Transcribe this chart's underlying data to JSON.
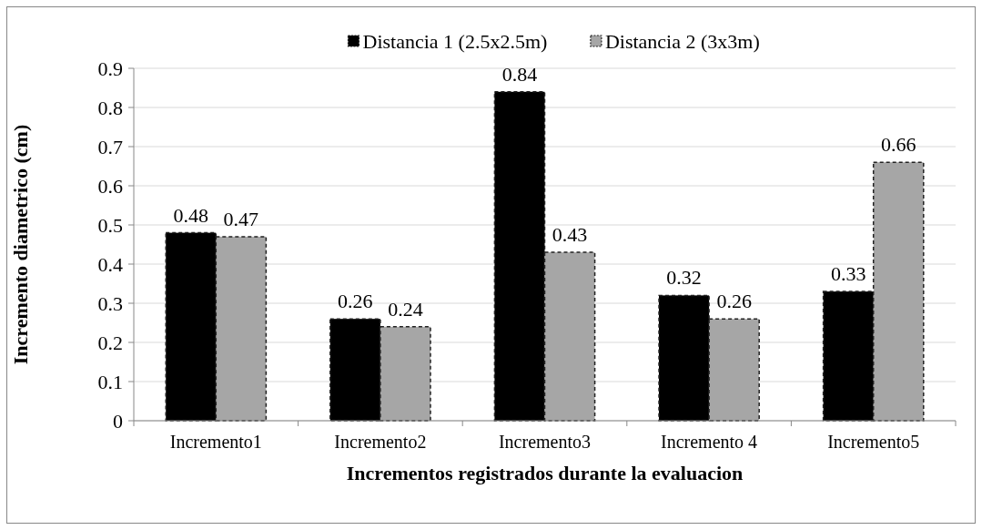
{
  "chart_data": {
    "type": "bar",
    "xlabel": "Incrementos registrados durante la evaluacion",
    "ylabel": "Incremento diametrico (cm)",
    "categories": [
      "Incremento1",
      "Incremento2",
      "Incremento3",
      "Incremento 4",
      "Incremento5"
    ],
    "series": [
      {
        "name": "Distancia 1 (2.5x2.5m)",
        "color": "#000000",
        "values": [
          0.48,
          0.26,
          0.84,
          0.32,
          0.33
        ]
      },
      {
        "name": "Distancia 2 (3x3m)",
        "color": "#a6a6a6",
        "values": [
          0.47,
          0.24,
          0.43,
          0.26,
          0.66
        ]
      }
    ],
    "ylim": [
      0,
      0.9
    ],
    "yticks": [
      0,
      0.1,
      0.2,
      0.3,
      0.4,
      0.5,
      0.6,
      0.7,
      0.8,
      0.9
    ],
    "grid": "y",
    "legend": "top",
    "data_labels": true,
    "line_style": "dashed"
  }
}
